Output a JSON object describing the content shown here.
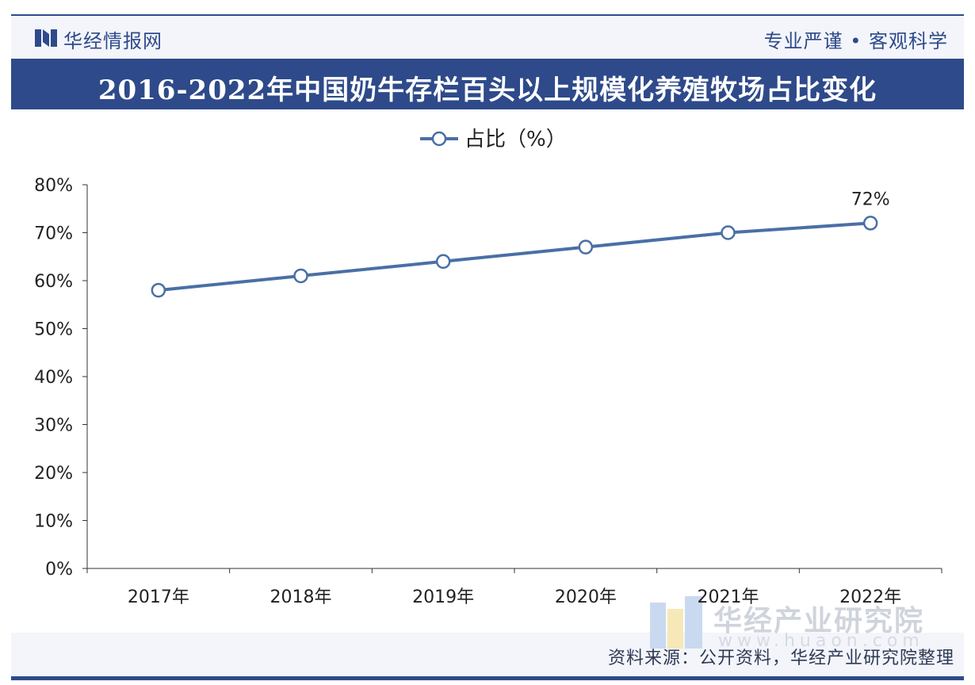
{
  "header": {
    "logo_text": "华经情报网",
    "slogan": "专业严谨 • 客观科学"
  },
  "title": "2016-2022年中国奶牛存栏百头以上规模化养殖牧场占比变化",
  "source": "资料来源：公开资料，华经产业研究院整理",
  "watermark": {
    "text": "华经产业研究院",
    "url": "www.huaon.com"
  },
  "colors": {
    "brand": "#2e4a8a",
    "line": "#4a6fa5"
  },
  "chart_data": {
    "type": "line",
    "title": "2016-2022年中国奶牛存栏百头以上规模化养殖牧场占比变化",
    "categories": [
      "2017年",
      "2018年",
      "2019年",
      "2020年",
      "2021年",
      "2022年"
    ],
    "series": [
      {
        "name": "占比（%）",
        "values": [
          58,
          61,
          64,
          67,
          70,
          72
        ]
      }
    ],
    "data_labels": [
      null,
      null,
      null,
      null,
      null,
      "72%"
    ],
    "ylim": [
      0,
      80
    ],
    "yticks": [
      "0%",
      "10%",
      "20%",
      "30%",
      "40%",
      "50%",
      "60%",
      "70%",
      "80%"
    ],
    "xlabel": "",
    "ylabel": "",
    "legend_position": "top-center",
    "grid": false
  }
}
